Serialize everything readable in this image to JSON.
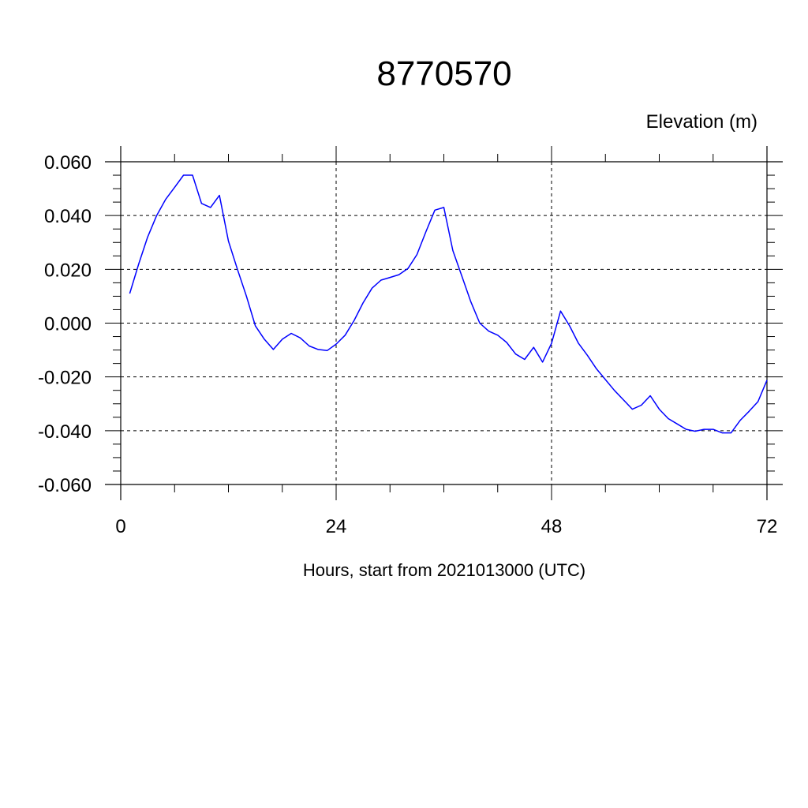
{
  "chart_data": {
    "type": "line",
    "title": "8770570",
    "ylabel": "Elevation (m)",
    "xlabel": "Hours, start from 2021013000 (UTC)",
    "xlim": [
      0,
      72
    ],
    "ylim": [
      -0.06,
      0.06
    ],
    "x_ticks": [
      0,
      24,
      48,
      72
    ],
    "x_tick_labels": [
      "0",
      "24",
      "48",
      "72"
    ],
    "y_ticks": [
      0.06,
      0.04,
      0.02,
      0.0,
      -0.02,
      -0.04,
      -0.06
    ],
    "y_tick_labels": [
      "0.060",
      "0.040",
      "0.020",
      "0.000",
      "-0.020",
      "-0.040",
      "-0.060"
    ],
    "grid": true,
    "line_color": "#0000ff",
    "series": [
      {
        "x": [
          1,
          2,
          3,
          4,
          5,
          6,
          7,
          8,
          9,
          10,
          11,
          12,
          13,
          14,
          15,
          16,
          17,
          18,
          19,
          20,
          21,
          22,
          23,
          24,
          25,
          26,
          27,
          28,
          29,
          30,
          31,
          32,
          33,
          34,
          35,
          36,
          37,
          38,
          39,
          40,
          41,
          42,
          43,
          44,
          45,
          46,
          47,
          48,
          49,
          50,
          51,
          52,
          53,
          54,
          55,
          56,
          57,
          58,
          59,
          60,
          61,
          62,
          63,
          64,
          65,
          66,
          67,
          68,
          69,
          70,
          71,
          72
        ],
        "y": [
          0.011,
          0.022,
          0.032,
          0.04,
          0.046,
          0.0505,
          0.055,
          0.055,
          0.0445,
          0.043,
          0.0475,
          0.0305,
          0.02,
          0.01,
          -0.001,
          -0.006,
          -0.0098,
          -0.006,
          -0.0038,
          -0.0055,
          -0.0085,
          -0.0098,
          -0.0102,
          -0.0078,
          -0.0045,
          0.001,
          0.0075,
          0.013,
          0.016,
          0.017,
          0.018,
          0.0203,
          0.0255,
          0.034,
          0.042,
          0.043,
          0.027,
          0.0175,
          0.008,
          0.0,
          -0.003,
          -0.0045,
          -0.0072,
          -0.0115,
          -0.0135,
          -0.009,
          -0.0145,
          -0.0075,
          0.0045,
          -0.001,
          -0.0075,
          -0.012,
          -0.017,
          -0.021,
          -0.025,
          -0.0285,
          -0.032,
          -0.0305,
          -0.027,
          -0.032,
          -0.0355,
          -0.0375,
          -0.0395,
          -0.0402,
          -0.0395,
          -0.0395,
          -0.0408,
          -0.0408,
          -0.0362,
          -0.0328,
          -0.0292,
          -0.0212
        ]
      }
    ]
  }
}
